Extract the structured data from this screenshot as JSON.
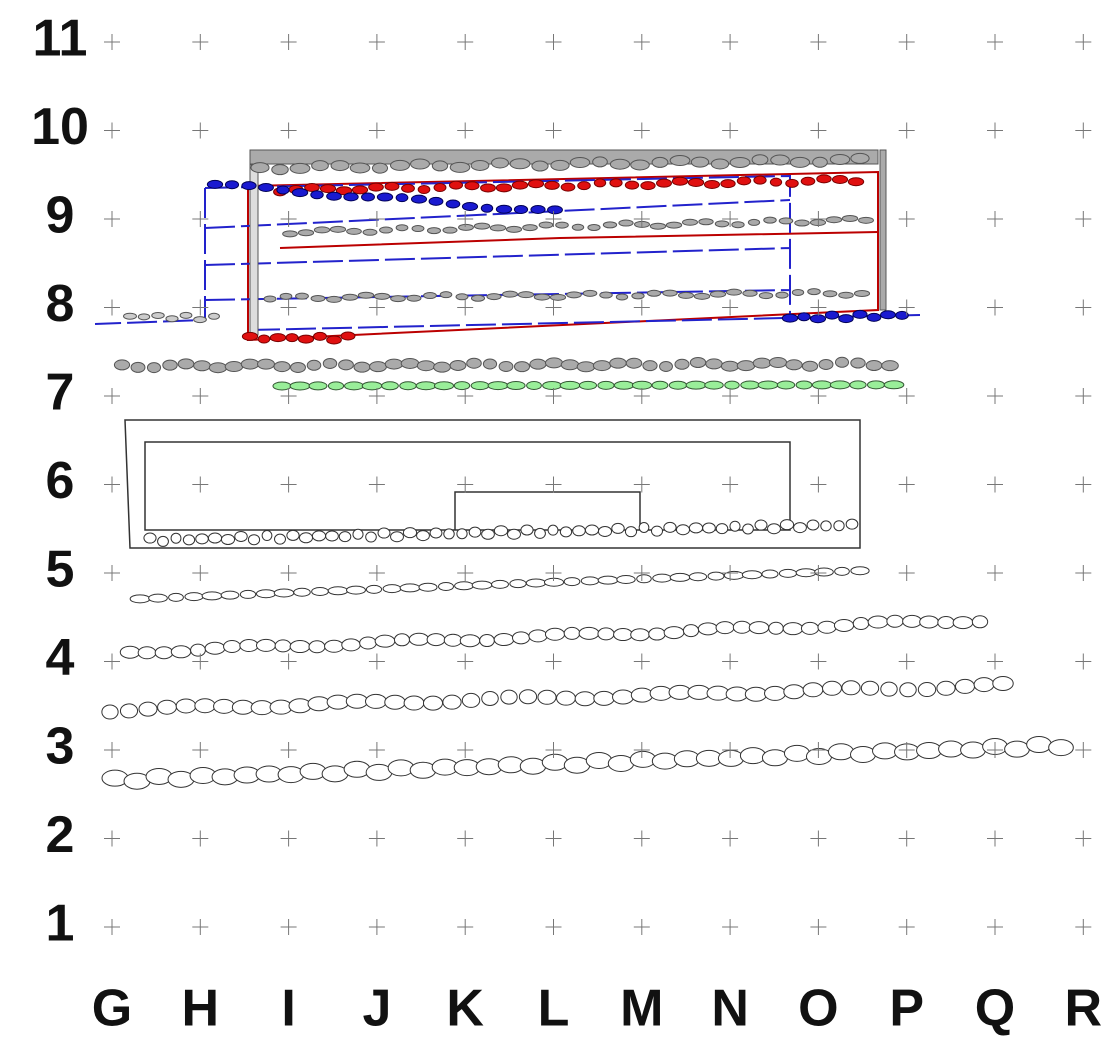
{
  "rows": [
    "11",
    "10",
    "9",
    "8",
    "7",
    "6",
    "5",
    "4",
    "3",
    "2",
    "1"
  ],
  "columns": [
    "G",
    "H",
    "I",
    "J",
    "K",
    "L",
    "M",
    "N",
    "O",
    "P",
    "Q",
    "R"
  ]
}
